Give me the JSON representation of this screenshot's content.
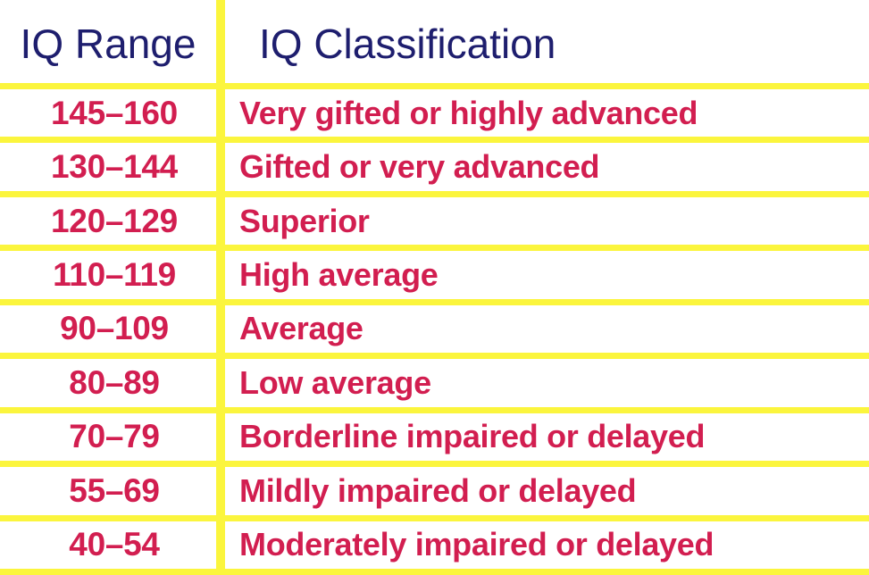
{
  "chart_data": {
    "type": "table",
    "columns": [
      "IQ Range",
      "IQ Classification"
    ],
    "rows": [
      [
        "145–160",
        "Very gifted or highly advanced"
      ],
      [
        "130–144",
        "Gifted or very advanced"
      ],
      [
        "120–129",
        "Superior"
      ],
      [
        "110–119",
        "High average"
      ],
      [
        "90–109",
        "Average"
      ],
      [
        "80–89",
        "Low average"
      ],
      [
        "70–79",
        "Borderline impaired or delayed"
      ],
      [
        "55–69",
        "Mildly impaired or delayed"
      ],
      [
        "40–54",
        "Moderately impaired or delayed"
      ]
    ],
    "layout_hints": {
      "grid": "yellow rules between rows and single vertical divider between columns",
      "outer_borders": "bottom rule only; no top/left/right outer border",
      "range_column_alignment": "center",
      "classification_column_alignment": "left"
    }
  },
  "colors": {
    "grid": "#FBF53D",
    "header_text": "#1E1E6E",
    "row_text": "#D21E50",
    "background": "#FFFFFF"
  }
}
